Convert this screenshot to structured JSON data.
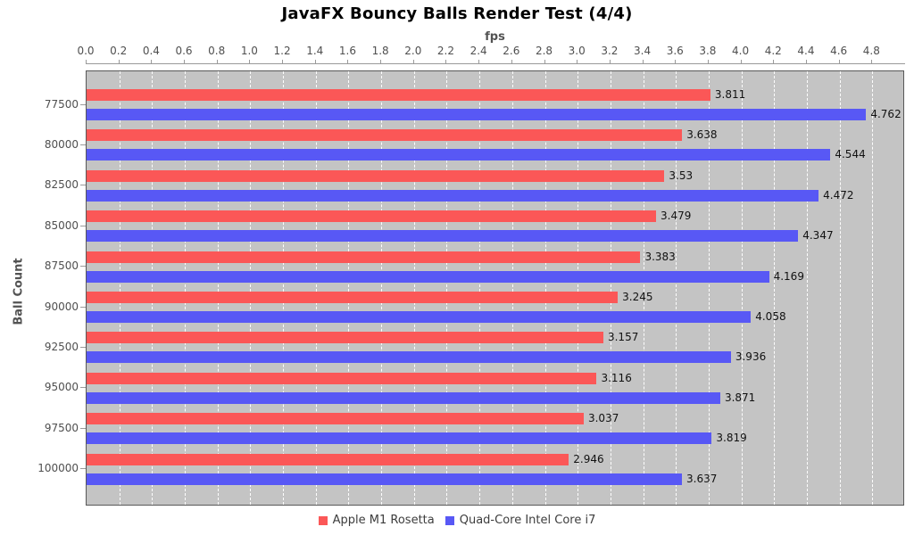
{
  "chart_data": {
    "type": "bar",
    "orientation": "horizontal",
    "title": "JavaFX Bouncy Balls Render Test (4/4)",
    "xlabel": "fps",
    "ylabel": "Ball Count",
    "xlim": [
      0,
      5
    ],
    "x_tick_step": 0.2,
    "x_tick_max": 4.8,
    "categories": [
      "77500",
      "80000",
      "82500",
      "85000",
      "87500",
      "90000",
      "92500",
      "95000",
      "97500",
      "100000"
    ],
    "series": [
      {
        "name": "Apple M1 Rosetta",
        "color": "#FB5757",
        "values": [
          3.811,
          3.638,
          3.53,
          3.479,
          3.383,
          3.245,
          3.157,
          3.116,
          3.037,
          2.946
        ]
      },
      {
        "name": "Quad-Core Intel Core i7",
        "color": "#5858F5",
        "values": [
          4.762,
          4.544,
          4.472,
          4.347,
          4.169,
          4.058,
          3.936,
          3.871,
          3.819,
          3.637
        ]
      }
    ],
    "bar_value_labels": true,
    "plot_background": "#C4C4C4",
    "grid": {
      "direction": "vertical",
      "style": "dashed",
      "color": "#FFFFFF"
    },
    "legend_position": "bottom"
  }
}
